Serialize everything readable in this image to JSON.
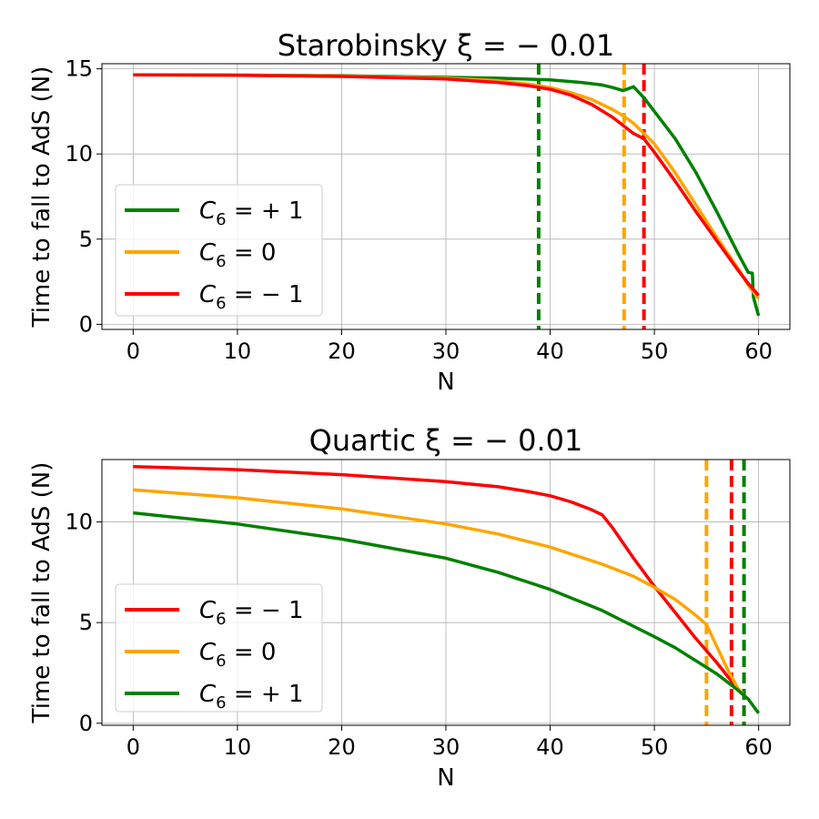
{
  "colors": {
    "green": "#008000",
    "orange": "#ffa500",
    "red": "#ff0000"
  },
  "chart_data": [
    {
      "type": "line",
      "title": "Starobinsky ξ = − 0.01",
      "xlabel": "N",
      "ylabel": "Time to fall to AdS (N)",
      "xlim": [
        -3,
        63
      ],
      "ylim": [
        -0.3,
        15.3
      ],
      "xticks": [
        0,
        10,
        20,
        30,
        40,
        50,
        60
      ],
      "xtick_labels": [
        "0",
        "10",
        "20",
        "30",
        "40",
        "50",
        "60"
      ],
      "yticks": [
        0,
        5,
        10,
        15
      ],
      "ytick_labels": [
        "0",
        "5",
        "10",
        "15"
      ],
      "grid": true,
      "legend_position": "lower-left",
      "series": [
        {
          "name": "C6 = +1",
          "label_main": "C",
          "label_sub": "6",
          "label_rest": " = + 1",
          "color": "#008000",
          "x": [
            0,
            10,
            20,
            30,
            35,
            40,
            43,
            45,
            46,
            47,
            48,
            49,
            50,
            52,
            54,
            56,
            58,
            59,
            59.4,
            59.5,
            60
          ],
          "y": [
            14.65,
            14.63,
            14.6,
            14.5,
            14.45,
            14.35,
            14.2,
            14.05,
            13.9,
            13.72,
            13.95,
            13.3,
            12.5,
            10.9,
            8.9,
            6.6,
            4.2,
            3.05,
            3.0,
            1.6,
            0.5
          ]
        },
        {
          "name": "C6 = 0",
          "label_main": "C",
          "label_sub": "6",
          "label_rest": " = 0",
          "color": "#ffa500",
          "x": [
            0,
            10,
            20,
            30,
            35,
            38,
            40,
            42,
            44,
            46,
            47,
            48,
            50,
            52,
            54,
            56,
            58,
            59,
            60
          ],
          "y": [
            14.65,
            14.63,
            14.58,
            14.45,
            14.3,
            14.1,
            13.9,
            13.6,
            13.2,
            12.6,
            12.25,
            11.8,
            10.6,
            8.9,
            7.0,
            5.1,
            3.3,
            2.3,
            1.5
          ]
        },
        {
          "name": "C6 = -1",
          "label_main": "C",
          "label_sub": "6",
          "label_rest": " = − 1",
          "color": "#ff0000",
          "x": [
            0,
            10,
            20,
            30,
            35,
            38,
            40,
            42,
            44,
            46,
            48,
            49,
            50,
            52,
            54,
            56,
            58,
            59,
            60
          ],
          "y": [
            14.65,
            14.62,
            14.55,
            14.4,
            14.2,
            14.0,
            13.8,
            13.45,
            12.9,
            12.15,
            11.2,
            10.9,
            10.1,
            8.4,
            6.6,
            4.9,
            3.2,
            2.4,
            1.7
          ]
        }
      ],
      "vlines": [
        {
          "x": 38.9,
          "color": "#008000"
        },
        {
          "x": 47.1,
          "color": "#ffa500"
        },
        {
          "x": 49.0,
          "color": "#ff0000"
        }
      ]
    },
    {
      "type": "line",
      "title": "Quartic ξ = − 0.01",
      "xlabel": "N",
      "ylabel": "Time to fall to AdS (N)",
      "xlim": [
        -3,
        63
      ],
      "ylim": [
        -0.1,
        13.1
      ],
      "xticks": [
        0,
        10,
        20,
        30,
        40,
        50,
        60
      ],
      "xtick_labels": [
        "0",
        "10",
        "20",
        "30",
        "40",
        "50",
        "60"
      ],
      "yticks": [
        0,
        5,
        10
      ],
      "ytick_labels": [
        "0",
        "5",
        "10"
      ],
      "grid": true,
      "legend_position": "lower-left",
      "series": [
        {
          "name": "C6 = -1",
          "label_main": "C",
          "label_sub": "6",
          "label_rest": " = − 1",
          "color": "#ff0000",
          "x": [
            0,
            10,
            20,
            30,
            35,
            38,
            40,
            42,
            44,
            45,
            46,
            48,
            50,
            52,
            54,
            56,
            58,
            58.5
          ],
          "y": [
            12.75,
            12.6,
            12.35,
            12.0,
            11.75,
            11.5,
            11.3,
            11.0,
            10.6,
            10.35,
            9.7,
            8.2,
            6.8,
            5.5,
            4.2,
            3.0,
            1.7,
            1.45
          ]
        },
        {
          "name": "C6 = 0",
          "label_main": "C",
          "label_sub": "6",
          "label_rest": " = 0",
          "color": "#ffa500",
          "x": [
            0,
            10,
            20,
            30,
            35,
            40,
            45,
            48,
            50,
            52,
            54,
            55,
            56,
            57,
            58,
            58.5
          ],
          "y": [
            11.6,
            11.2,
            10.65,
            9.9,
            9.4,
            8.75,
            7.9,
            7.3,
            6.75,
            6.15,
            5.35,
            4.9,
            3.8,
            2.7,
            1.75,
            1.45
          ]
        },
        {
          "name": "C6 = +1",
          "label_main": "C",
          "label_sub": "6",
          "label_rest": " = + 1",
          "color": "#008000",
          "x": [
            0,
            10,
            20,
            30,
            35,
            40,
            45,
            50,
            52,
            54,
            56,
            58,
            59,
            60
          ],
          "y": [
            10.45,
            9.9,
            9.15,
            8.2,
            7.5,
            6.65,
            5.6,
            4.3,
            3.75,
            3.1,
            2.45,
            1.65,
            1.2,
            0.5
          ]
        }
      ],
      "vlines": [
        {
          "x": 55.0,
          "color": "#ffa500"
        },
        {
          "x": 57.4,
          "color": "#ff0000"
        },
        {
          "x": 58.6,
          "color": "#008000"
        }
      ]
    }
  ]
}
